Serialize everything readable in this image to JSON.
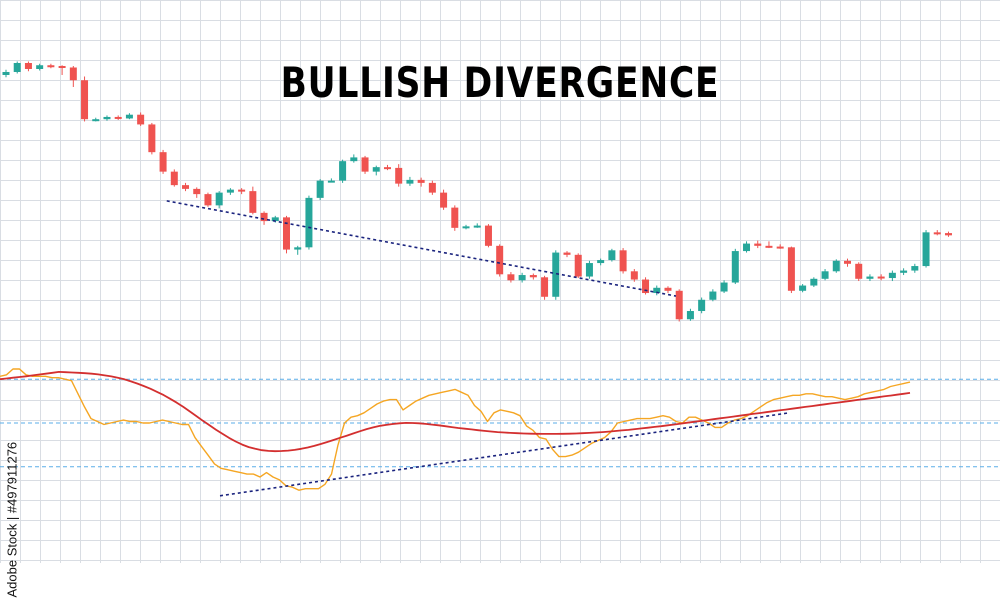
{
  "title": "BULLISH DIVERGENCE",
  "stock_id": "Adobe Stock | #497911276",
  "colors": {
    "up": "#26a69a",
    "down": "#ef5350",
    "signal_line": "#d32f2f",
    "oscillator_line": "#f5a623",
    "trendline": "#1a237e",
    "level_line": "#5aaee8",
    "grid": "#d9dde3"
  },
  "chart_data": [
    {
      "type": "candlestick",
      "panel": "price",
      "trendline_from_candle": 17,
      "trendline_to_candle": 59,
      "candles": [
        [
          62.5,
          62.9,
          63.2,
          62.2
        ],
        [
          62.9,
          64.1,
          64.3,
          62.7
        ],
        [
          64.1,
          63.3,
          64.3,
          63.0
        ],
        [
          63.3,
          63.8,
          64.0,
          63.1
        ],
        [
          63.8,
          63.7,
          64.0,
          63.4
        ],
        [
          63.7,
          63.5,
          63.8,
          62.5
        ],
        [
          63.5,
          61.8,
          63.7,
          60.9
        ],
        [
          61.8,
          56.6,
          62.3,
          56.3
        ],
        [
          56.6,
          56.6,
          56.8,
          56.3
        ],
        [
          56.6,
          56.9,
          57.1,
          56.4
        ],
        [
          56.9,
          56.7,
          57.1,
          56.5
        ],
        [
          56.7,
          57.2,
          57.4,
          56.6
        ],
        [
          57.2,
          55.9,
          57.5,
          55.7
        ],
        [
          55.9,
          52.2,
          56.1,
          51.9
        ],
        [
          52.2,
          49.6,
          52.5,
          49.3
        ],
        [
          49.6,
          47.8,
          49.9,
          47.6
        ],
        [
          47.8,
          47.3,
          48.1,
          47.0
        ],
        [
          47.3,
          46.6,
          47.5,
          46.1
        ],
        [
          46.6,
          45.1,
          46.8,
          44.9
        ],
        [
          45.1,
          46.8,
          47.0,
          44.7
        ],
        [
          46.8,
          47.2,
          47.4,
          46.5
        ],
        [
          47.2,
          47.0,
          47.4,
          46.6
        ],
        [
          47.0,
          44.1,
          47.6,
          43.9
        ],
        [
          44.1,
          43.0,
          44.3,
          42.5
        ],
        [
          43.0,
          43.5,
          43.7,
          42.8
        ],
        [
          43.5,
          39.2,
          43.7,
          38.7
        ],
        [
          39.2,
          39.5,
          39.7,
          38.5
        ],
        [
          39.5,
          46.1,
          46.4,
          39.2
        ],
        [
          46.1,
          48.4,
          48.6,
          45.8
        ],
        [
          48.4,
          48.4,
          48.7,
          48.2
        ],
        [
          48.4,
          51.0,
          51.2,
          48.1
        ],
        [
          51.0,
          51.5,
          51.9,
          50.8
        ],
        [
          51.5,
          49.6,
          51.7,
          49.3
        ],
        [
          49.6,
          50.2,
          50.4,
          49.1
        ],
        [
          50.2,
          50.1,
          50.5,
          49.8
        ],
        [
          50.1,
          48.0,
          50.6,
          47.6
        ],
        [
          48.0,
          48.5,
          48.9,
          47.7
        ],
        [
          48.5,
          48.1,
          48.8,
          47.6
        ],
        [
          48.1,
          46.8,
          48.4,
          46.5
        ],
        [
          46.8,
          44.8,
          47.2,
          44.5
        ],
        [
          44.8,
          42.1,
          45.1,
          41.7
        ],
        [
          42.1,
          42.3,
          42.5,
          41.9
        ],
        [
          42.3,
          42.4,
          42.7,
          42.1
        ],
        [
          42.4,
          39.7,
          42.6,
          39.5
        ],
        [
          39.7,
          35.9,
          39.9,
          35.6
        ],
        [
          35.9,
          35.1,
          36.2,
          34.8
        ],
        [
          35.1,
          35.8,
          36.1,
          34.8
        ],
        [
          35.8,
          35.5,
          36.0,
          35.2
        ],
        [
          35.5,
          32.9,
          35.7,
          32.5
        ],
        [
          32.9,
          38.8,
          39.1,
          32.5
        ],
        [
          38.8,
          38.5,
          39.0,
          38.2
        ],
        [
          38.5,
          35.6,
          38.7,
          35.4
        ],
        [
          35.6,
          37.4,
          37.7,
          35.3
        ],
        [
          37.4,
          37.8,
          38.0,
          37.1
        ],
        [
          37.8,
          39.1,
          39.3,
          37.6
        ],
        [
          39.1,
          36.3,
          39.4,
          36.0
        ],
        [
          36.3,
          35.2,
          36.6,
          34.9
        ],
        [
          35.2,
          33.4,
          35.5,
          33.2
        ],
        [
          33.4,
          34.1,
          34.4,
          33.1
        ],
        [
          34.1,
          33.7,
          34.3,
          33.4
        ],
        [
          33.7,
          29.9,
          33.9,
          29.6
        ],
        [
          29.9,
          31.0,
          31.3,
          29.7
        ],
        [
          31.0,
          32.5,
          32.8,
          30.7
        ],
        [
          32.5,
          33.6,
          33.9,
          32.3
        ],
        [
          33.6,
          34.8,
          35.1,
          33.4
        ],
        [
          34.8,
          39.0,
          39.3,
          34.6
        ],
        [
          39.0,
          40.0,
          40.3,
          38.8
        ],
        [
          40.0,
          39.7,
          40.4,
          39.4
        ],
        [
          39.7,
          39.6,
          40.3,
          39.4
        ],
        [
          39.6,
          39.5,
          39.9,
          39.3
        ],
        [
          39.5,
          33.7,
          39.6,
          33.4
        ],
        [
          33.7,
          34.4,
          34.6,
          33.5
        ],
        [
          34.4,
          35.3,
          35.5,
          34.2
        ],
        [
          35.3,
          36.3,
          36.6,
          35.1
        ],
        [
          36.3,
          37.7,
          37.9,
          36.1
        ],
        [
          37.7,
          37.3,
          38.0,
          36.9
        ],
        [
          37.3,
          35.3,
          37.5,
          35.0
        ],
        [
          35.3,
          35.6,
          35.9,
          35.0
        ],
        [
          35.6,
          35.4,
          35.9,
          35.1
        ],
        [
          35.4,
          36.1,
          36.4,
          35.0
        ],
        [
          36.1,
          36.4,
          36.7,
          35.8
        ],
        [
          36.4,
          37.0,
          37.3,
          36.1
        ],
        [
          37.0,
          41.5,
          41.8,
          36.8
        ],
        [
          41.5,
          41.4,
          41.8,
          41.1
        ],
        [
          41.4,
          41.1,
          41.6,
          40.9
        ]
      ]
    },
    {
      "type": "line",
      "panel": "oscillator",
      "ylim": [
        0,
        100
      ],
      "level_lines": [
        80,
        50,
        20
      ],
      "trendline_from_index": 40,
      "trendline_to_index": 112,
      "series": [
        {
          "color_key": "oscillator_line",
          "values": [
            82,
            83,
            87,
            87,
            83,
            82,
            82,
            82,
            81,
            81,
            80,
            79,
            70,
            61,
            53,
            51,
            49,
            50,
            51,
            52,
            51,
            51,
            50,
            50,
            51,
            52,
            51,
            50,
            49,
            49,
            40,
            34,
            28,
            22,
            19,
            18,
            17,
            16,
            15,
            15,
            13,
            16,
            13,
            11,
            7,
            6,
            4,
            5,
            5,
            5,
            8,
            15,
            35,
            50,
            54,
            55,
            57,
            60,
            63,
            65,
            66,
            66,
            59,
            62,
            65,
            67,
            69,
            70,
            71,
            72,
            73,
            71,
            69,
            62,
            58,
            51,
            57,
            59,
            58,
            57,
            55,
            48,
            45,
            40,
            39,
            32,
            27,
            27,
            28,
            30,
            33,
            36,
            38,
            40,
            44,
            50,
            51,
            52,
            53,
            53,
            53,
            54,
            55,
            54,
            51,
            50,
            54,
            54,
            52,
            50,
            47,
            47,
            50,
            52,
            53,
            55,
            58,
            61,
            64,
            66,
            67,
            68,
            69,
            69,
            70,
            70,
            69,
            68,
            68,
            67,
            66,
            67,
            68,
            70,
            71,
            72,
            73,
            75,
            76,
            77,
            78
          ]
        },
        {
          "color_key": "signal_line",
          "values": [
            80,
            80.5,
            81,
            81.5,
            82,
            82.6,
            83.2,
            83.8,
            84.4,
            85,
            84.8,
            84.6,
            84.4,
            84.1,
            83.8,
            83.3,
            82.6,
            81.9,
            81,
            79.9,
            78.5,
            77,
            75.3,
            73.4,
            71.3,
            69.1,
            66.6,
            63.9,
            61,
            57.9,
            54.7,
            51.5,
            48.4,
            45.4,
            42.5,
            39.8,
            37.3,
            35.2,
            33.5,
            32.3,
            31.4,
            30.9,
            30.7,
            30.8,
            31.1,
            31.6,
            32.3,
            33.2,
            34.3,
            35.6,
            37,
            38.4,
            39.9,
            41.4,
            42.9,
            44.4,
            45.8,
            47,
            48,
            48.7,
            49.3,
            49.8,
            50.1,
            50,
            49.8,
            49.4,
            48.9,
            48.4,
            47.8,
            47.2,
            46.6,
            46.1,
            45.6,
            45.1,
            44.6,
            44.2,
            43.8,
            43.5,
            43.2,
            43,
            42.8,
            42.7,
            42.6,
            42.5,
            42.5,
            42.5,
            42.6,
            42.7,
            42.8,
            43,
            43.2,
            43.5,
            43.8,
            44.1,
            44.5,
            44.9,
            45.3,
            45.8,
            46.3,
            46.8,
            47.3,
            47.8,
            48.4,
            49,
            49.6,
            50.2,
            50.8,
            51.4,
            52,
            52.6,
            53.2,
            53.8,
            54.4,
            55,
            55.6,
            56.2,
            56.8,
            57.4,
            58,
            58.6,
            59.2,
            59.8,
            60.4,
            61,
            61.6,
            62.2,
            62.8,
            63.4,
            64,
            64.6,
            65.2,
            65.8,
            66.4,
            67,
            67.6,
            68.2,
            68.8,
            69.4,
            70,
            70.6
          ]
        }
      ]
    }
  ]
}
